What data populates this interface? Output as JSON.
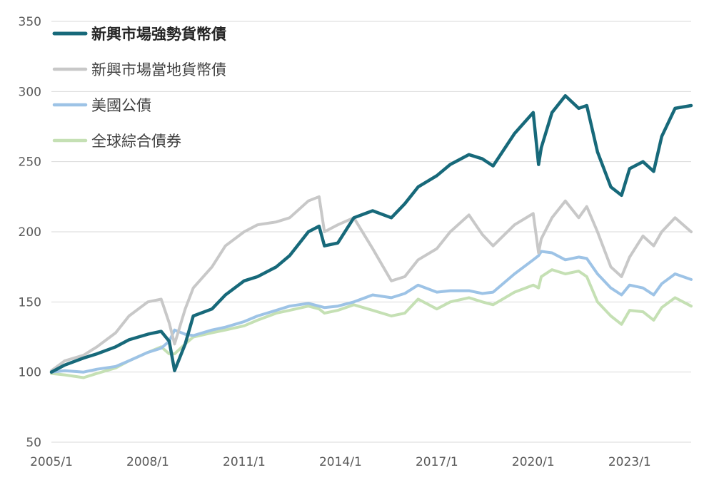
{
  "chart_data": {
    "type": "line",
    "title": "",
    "xlabel": "",
    "ylabel": "",
    "ylim": [
      50,
      350
    ],
    "xlim": [
      "2005/1",
      "2024/12"
    ],
    "y_ticks": [
      "350",
      "300",
      "250",
      "200",
      "150",
      "100",
      "50"
    ],
    "x_ticks": [
      "2005/1",
      "2008/1",
      "2011/1",
      "2014/1",
      "2017/1",
      "2020/1",
      "2023/1"
    ],
    "grid": "horizontal",
    "legend_position": "top-left",
    "series": [
      {
        "name": "新興市場強勢貨幣債",
        "color": "#17697a",
        "bold": true,
        "x": [
          "2005/1",
          "2005/6",
          "2006/1",
          "2006/6",
          "2007/1",
          "2007/6",
          "2008/1",
          "2008/6",
          "2008/9",
          "2008/11",
          "2009/3",
          "2009/6",
          "2010/1",
          "2010/6",
          "2011/1",
          "2011/6",
          "2012/1",
          "2012/6",
          "2013/1",
          "2013/5",
          "2013/7",
          "2013/12",
          "2014/6",
          "2015/1",
          "2015/8",
          "2016/1",
          "2016/6",
          "2017/1",
          "2017/6",
          "2018/1",
          "2018/6",
          "2018/10",
          "2019/6",
          "2020/1",
          "2020/3",
          "2020/4",
          "2020/8",
          "2021/1",
          "2021/6",
          "2021/9",
          "2022/1",
          "2022/6",
          "2022/10",
          "2023/1",
          "2023/6",
          "2023/10",
          "2024/1",
          "2024/6",
          "2024/12"
        ],
        "values": [
          100,
          105,
          110,
          113,
          118,
          123,
          127,
          129,
          122,
          101,
          120,
          140,
          145,
          155,
          165,
          168,
          175,
          183,
          200,
          204,
          190,
          192,
          210,
          215,
          210,
          220,
          232,
          240,
          248,
          255,
          252,
          247,
          270,
          285,
          248,
          260,
          285,
          297,
          288,
          290,
          257,
          232,
          226,
          245,
          250,
          243,
          268,
          288,
          290
        ]
      },
      {
        "name": "新興市場當地貨幣債",
        "color": "#c8c8c8",
        "bold": false,
        "x": [
          "2005/1",
          "2005/6",
          "2006/1",
          "2006/6",
          "2007/1",
          "2007/6",
          "2008/1",
          "2008/6",
          "2008/9",
          "2008/11",
          "2009/3",
          "2009/6",
          "2010/1",
          "2010/6",
          "2011/1",
          "2011/6",
          "2012/1",
          "2012/6",
          "2013/1",
          "2013/5",
          "2013/7",
          "2013/12",
          "2014/6",
          "2015/1",
          "2015/8",
          "2016/1",
          "2016/6",
          "2017/1",
          "2017/6",
          "2018/1",
          "2018/6",
          "2018/10",
          "2019/6",
          "2020/1",
          "2020/3",
          "2020/4",
          "2020/8",
          "2021/1",
          "2021/6",
          "2021/9",
          "2022/1",
          "2022/6",
          "2022/10",
          "2023/1",
          "2023/6",
          "2023/10",
          "2024/1",
          "2024/6",
          "2024/12"
        ],
        "values": [
          101,
          108,
          112,
          118,
          128,
          140,
          150,
          152,
          135,
          120,
          145,
          160,
          175,
          190,
          200,
          205,
          207,
          210,
          222,
          225,
          200,
          205,
          210,
          188,
          165,
          168,
          180,
          188,
          200,
          212,
          198,
          190,
          205,
          213,
          185,
          195,
          210,
          222,
          210,
          218,
          200,
          175,
          168,
          182,
          197,
          190,
          200,
          210,
          200
        ]
      },
      {
        "name": "美國公債",
        "color": "#9dc3e6",
        "bold": false,
        "x": [
          "2005/1",
          "2005/6",
          "2006/1",
          "2006/6",
          "2007/1",
          "2007/6",
          "2008/1",
          "2008/6",
          "2008/9",
          "2008/11",
          "2009/3",
          "2009/6",
          "2010/1",
          "2010/6",
          "2011/1",
          "2011/6",
          "2012/1",
          "2012/6",
          "2013/1",
          "2013/5",
          "2013/7",
          "2013/12",
          "2014/6",
          "2015/1",
          "2015/8",
          "2016/1",
          "2016/6",
          "2017/1",
          "2017/6",
          "2018/1",
          "2018/6",
          "2018/10",
          "2019/6",
          "2020/1",
          "2020/3",
          "2020/4",
          "2020/8",
          "2021/1",
          "2021/6",
          "2021/9",
          "2022/1",
          "2022/6",
          "2022/10",
          "2023/1",
          "2023/6",
          "2023/10",
          "2024/1",
          "2024/6",
          "2024/12"
        ],
        "values": [
          100,
          101,
          100,
          102,
          104,
          108,
          114,
          117,
          122,
          130,
          127,
          126,
          130,
          132,
          136,
          140,
          144,
          147,
          149,
          147,
          146,
          147,
          150,
          155,
          153,
          156,
          162,
          157,
          158,
          158,
          156,
          157,
          170,
          180,
          183,
          186,
          185,
          180,
          182,
          181,
          170,
          160,
          155,
          162,
          160,
          155,
          163,
          170,
          166
        ]
      },
      {
        "name": "全球綜合債券",
        "color": "#c5e0b4",
        "bold": false,
        "x": [
          "2005/1",
          "2005/6",
          "2006/1",
          "2006/6",
          "2007/1",
          "2007/6",
          "2008/1",
          "2008/6",
          "2008/9",
          "2008/11",
          "2009/3",
          "2009/6",
          "2010/1",
          "2010/6",
          "2011/1",
          "2011/6",
          "2012/1",
          "2012/6",
          "2013/1",
          "2013/5",
          "2013/7",
          "2013/12",
          "2014/6",
          "2015/1",
          "2015/8",
          "2016/1",
          "2016/6",
          "2017/1",
          "2017/6",
          "2018/1",
          "2018/6",
          "2018/10",
          "2019/6",
          "2020/1",
          "2020/3",
          "2020/4",
          "2020/8",
          "2021/1",
          "2021/6",
          "2021/9",
          "2022/1",
          "2022/6",
          "2022/10",
          "2023/1",
          "2023/6",
          "2023/10",
          "2024/1",
          "2024/6",
          "2024/12"
        ],
        "values": [
          99,
          98,
          96,
          99,
          103,
          108,
          114,
          118,
          113,
          113,
          120,
          125,
          128,
          130,
          133,
          137,
          142,
          144,
          147,
          145,
          142,
          144,
          148,
          144,
          140,
          142,
          152,
          145,
          150,
          153,
          150,
          148,
          157,
          162,
          160,
          168,
          173,
          170,
          172,
          168,
          150,
          140,
          134,
          144,
          143,
          137,
          146,
          153,
          147
        ]
      }
    ]
  }
}
